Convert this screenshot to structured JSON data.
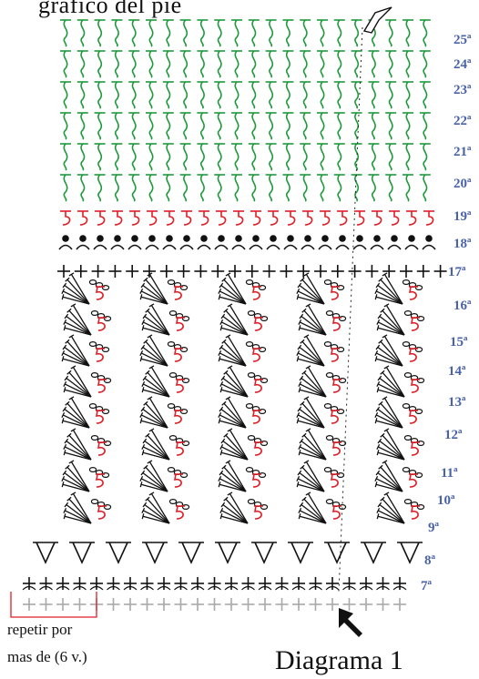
{
  "caption_top": "gráfico del pie",
  "caption_bottom": "Diagrama 1",
  "note_line1": "repetir por",
  "note_line2": "mas de (6 v.)",
  "row_labels": [
    "7ª",
    "8ª",
    "9ª",
    "10ª",
    "11ª",
    "12ª",
    "13ª",
    "14ª",
    "15ª",
    "16ª",
    "17ª",
    "18ª",
    "19ª",
    "20ª",
    "21ª",
    "22ª",
    "23ª",
    "24ª",
    "25ª"
  ],
  "colors": {
    "row_label": "#4a63a8",
    "green_stitch": "#1e9a3c",
    "red_stitch": "#e01e26",
    "black_stitch": "#111111",
    "grey_base": "#a8a8a8",
    "repeat_box": "#e01e26"
  },
  "icons": {
    "start_marker": "arrow-up-left-icon",
    "end_marker": "arrow-down-right-outline-icon"
  }
}
